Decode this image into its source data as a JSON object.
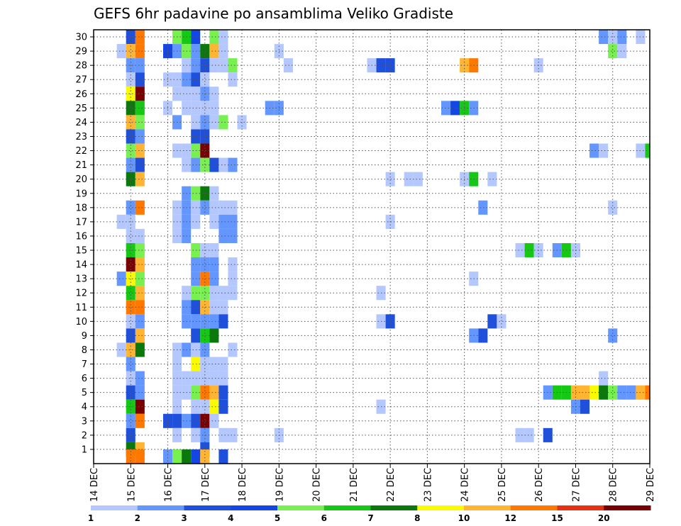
{
  "chart_data": {
    "type": "heatmap",
    "title": "GEFS 6hr padavine po ansamblima Veliko Gradiste",
    "xlabel": "",
    "ylabel": "",
    "x_ticks": [
      "14 DEC",
      "15 DEC",
      "16 DEC",
      "17 DEC",
      "18 DEC",
      "19 DEC",
      "20 DEC",
      "21 DEC",
      "22 DEC",
      "23 DEC",
      "24 DEC",
      "25 DEC",
      "26 DEC",
      "27 DEC",
      "28 DEC",
      "29 DEC"
    ],
    "y_ticks": [
      1,
      2,
      3,
      4,
      5,
      6,
      7,
      8,
      9,
      10,
      11,
      12,
      13,
      14,
      15,
      16,
      17,
      18,
      19,
      20,
      21,
      22,
      23,
      24,
      25,
      26,
      27,
      28,
      29,
      30
    ],
    "time_range_days": [
      0,
      15
    ],
    "member_range": [
      0,
      30.5
    ],
    "grid": "dotted",
    "colorbar": {
      "labels": [
        "1",
        "2",
        "3",
        "4",
        "5",
        "6",
        "7",
        "8",
        "10",
        "12",
        "15",
        "20"
      ],
      "colors": [
        "#b4c8ff",
        "#6496ff",
        "#1e50dc",
        "#1446e6",
        "#78f050",
        "#14c814",
        "#0a780a",
        "#fafa00",
        "#ffb432",
        "#ff7800",
        "#e63214",
        "#780000"
      ]
    },
    "cell_width_hours": 6,
    "cells": [
      [
        1.0,
        30,
        3
      ],
      [
        1.25,
        30,
        12
      ],
      [
        2.25,
        30,
        5
      ],
      [
        2.5,
        30,
        6
      ],
      [
        2.75,
        30,
        4
      ],
      [
        3.25,
        30,
        5
      ],
      [
        3.5,
        30,
        1
      ],
      [
        13.75,
        30,
        2
      ],
      [
        14.0,
        30,
        1
      ],
      [
        14.25,
        30,
        2
      ],
      [
        14.75,
        30,
        1
      ],
      [
        0.75,
        29,
        1
      ],
      [
        1.0,
        29,
        10
      ],
      [
        1.25,
        29,
        12
      ],
      [
        2.0,
        29,
        4
      ],
      [
        2.25,
        29,
        2
      ],
      [
        2.5,
        29,
        5
      ],
      [
        2.75,
        29,
        2
      ],
      [
        3.0,
        29,
        7
      ],
      [
        3.25,
        29,
        10
      ],
      [
        3.5,
        29,
        1
      ],
      [
        5.0,
        29,
        1
      ],
      [
        14.0,
        29,
        5
      ],
      [
        14.25,
        29,
        1
      ],
      [
        1.0,
        28,
        2
      ],
      [
        1.25,
        28,
        2
      ],
      [
        2.5,
        28,
        1
      ],
      [
        2.75,
        28,
        2
      ],
      [
        3.0,
        28,
        3
      ],
      [
        3.25,
        28,
        1
      ],
      [
        3.5,
        28,
        1
      ],
      [
        3.75,
        28,
        5
      ],
      [
        5.25,
        28,
        1
      ],
      [
        7.5,
        28,
        1
      ],
      [
        7.75,
        28,
        3
      ],
      [
        8.0,
        28,
        3
      ],
      [
        10.0,
        28,
        10
      ],
      [
        10.25,
        28,
        12
      ],
      [
        12.0,
        28,
        1
      ],
      [
        1.0,
        27,
        1
      ],
      [
        1.25,
        27,
        3
      ],
      [
        2.0,
        27,
        1
      ],
      [
        2.25,
        27,
        1
      ],
      [
        2.5,
        27,
        2
      ],
      [
        2.75,
        27,
        3
      ],
      [
        3.0,
        27,
        1
      ],
      [
        3.75,
        27,
        1
      ],
      [
        1.0,
        26,
        8
      ],
      [
        1.25,
        26,
        20
      ],
      [
        2.25,
        26,
        1
      ],
      [
        2.5,
        26,
        1
      ],
      [
        2.75,
        26,
        1
      ],
      [
        3.0,
        26,
        2
      ],
      [
        3.25,
        26,
        1
      ],
      [
        1.0,
        25,
        7
      ],
      [
        1.25,
        25,
        6
      ],
      [
        2.0,
        25,
        1
      ],
      [
        2.5,
        25,
        1
      ],
      [
        2.75,
        25,
        1
      ],
      [
        3.0,
        25,
        1
      ],
      [
        3.25,
        25,
        1
      ],
      [
        4.75,
        25,
        2
      ],
      [
        5.0,
        25,
        2
      ],
      [
        9.5,
        25,
        2
      ],
      [
        9.75,
        25,
        4
      ],
      [
        10.0,
        25,
        6
      ],
      [
        10.25,
        25,
        2
      ],
      [
        1.0,
        24,
        10
      ],
      [
        1.25,
        24,
        5
      ],
      [
        2.25,
        24,
        2
      ],
      [
        2.75,
        24,
        1
      ],
      [
        3.0,
        24,
        2
      ],
      [
        3.25,
        24,
        1
      ],
      [
        3.5,
        24,
        5
      ],
      [
        4.0,
        24,
        1
      ],
      [
        1.0,
        23,
        3
      ],
      [
        1.25,
        23,
        2
      ],
      [
        2.75,
        23,
        3
      ],
      [
        3.0,
        23,
        3
      ],
      [
        1.0,
        22,
        5
      ],
      [
        1.25,
        22,
        10
      ],
      [
        2.25,
        22,
        1
      ],
      [
        2.5,
        22,
        1
      ],
      [
        2.75,
        22,
        5
      ],
      [
        3.0,
        22,
        20
      ],
      [
        13.5,
        22,
        2
      ],
      [
        13.75,
        22,
        1
      ],
      [
        14.75,
        22,
        1
      ],
      [
        15.0,
        22,
        6
      ],
      [
        1.0,
        21,
        2
      ],
      [
        1.25,
        21,
        3
      ],
      [
        2.5,
        21,
        1
      ],
      [
        2.75,
        21,
        2
      ],
      [
        3.0,
        21,
        5
      ],
      [
        3.25,
        21,
        3
      ],
      [
        3.5,
        21,
        1
      ],
      [
        3.75,
        21,
        2
      ],
      [
        1.0,
        20,
        7
      ],
      [
        1.25,
        20,
        10
      ],
      [
        8.0,
        20,
        1
      ],
      [
        8.5,
        20,
        1
      ],
      [
        8.75,
        20,
        1
      ],
      [
        10.0,
        20,
        1
      ],
      [
        10.25,
        20,
        6
      ],
      [
        10.75,
        20,
        1
      ],
      [
        2.5,
        19,
        2
      ],
      [
        2.75,
        19,
        5
      ],
      [
        3.0,
        19,
        7
      ],
      [
        3.25,
        19,
        1
      ],
      [
        1.0,
        18,
        2
      ],
      [
        1.25,
        18,
        12
      ],
      [
        2.25,
        18,
        1
      ],
      [
        2.5,
        18,
        2
      ],
      [
        2.75,
        18,
        1
      ],
      [
        3.0,
        18,
        2
      ],
      [
        3.25,
        18,
        1
      ],
      [
        3.5,
        18,
        1
      ],
      [
        3.75,
        18,
        1
      ],
      [
        10.5,
        18,
        2
      ],
      [
        14.0,
        18,
        1
      ],
      [
        0.75,
        17,
        1
      ],
      [
        1.0,
        17,
        1
      ],
      [
        2.25,
        17,
        1
      ],
      [
        2.5,
        17,
        2
      ],
      [
        2.75,
        17,
        1
      ],
      [
        3.25,
        17,
        1
      ],
      [
        3.5,
        17,
        2
      ],
      [
        3.75,
        17,
        2
      ],
      [
        8.0,
        17,
        1
      ],
      [
        1.0,
        16,
        1
      ],
      [
        1.25,
        16,
        1
      ],
      [
        2.25,
        16,
        1
      ],
      [
        2.5,
        16,
        2
      ],
      [
        3.5,
        16,
        2
      ],
      [
        3.75,
        16,
        2
      ],
      [
        1.0,
        15,
        6
      ],
      [
        1.25,
        15,
        5
      ],
      [
        2.75,
        15,
        5
      ],
      [
        3.0,
        15,
        1
      ],
      [
        3.25,
        15,
        1
      ],
      [
        11.5,
        15,
        1
      ],
      [
        11.75,
        15,
        6
      ],
      [
        12.0,
        15,
        1
      ],
      [
        12.5,
        15,
        2
      ],
      [
        12.75,
        15,
        6
      ],
      [
        13.0,
        15,
        1
      ],
      [
        1.0,
        14,
        20
      ],
      [
        1.25,
        14,
        10
      ],
      [
        2.75,
        14,
        2
      ],
      [
        3.0,
        14,
        2
      ],
      [
        3.25,
        14,
        2
      ],
      [
        3.75,
        14,
        1
      ],
      [
        0.75,
        13,
        2
      ],
      [
        1.0,
        13,
        8
      ],
      [
        1.25,
        13,
        5
      ],
      [
        2.75,
        13,
        2
      ],
      [
        3.0,
        13,
        12
      ],
      [
        3.25,
        13,
        2
      ],
      [
        3.75,
        13,
        1
      ],
      [
        10.25,
        13,
        1
      ],
      [
        1.0,
        12,
        6
      ],
      [
        1.25,
        12,
        10
      ],
      [
        2.5,
        12,
        1
      ],
      [
        2.75,
        12,
        5
      ],
      [
        3.0,
        12,
        5
      ],
      [
        3.25,
        12,
        1
      ],
      [
        3.5,
        12,
        1
      ],
      [
        3.75,
        12,
        1
      ],
      [
        7.75,
        12,
        1
      ],
      [
        1.0,
        11,
        12
      ],
      [
        1.25,
        11,
        12
      ],
      [
        2.5,
        11,
        2
      ],
      [
        2.75,
        11,
        3
      ],
      [
        3.0,
        11,
        10
      ],
      [
        3.25,
        11,
        1
      ],
      [
        3.5,
        11,
        1
      ],
      [
        1.0,
        10,
        1
      ],
      [
        1.25,
        10,
        2
      ],
      [
        2.5,
        10,
        2
      ],
      [
        2.75,
        10,
        2
      ],
      [
        3.0,
        10,
        2
      ],
      [
        3.25,
        10,
        2
      ],
      [
        3.5,
        10,
        3
      ],
      [
        7.75,
        10,
        1
      ],
      [
        8.0,
        10,
        3
      ],
      [
        10.75,
        10,
        3
      ],
      [
        11.0,
        10,
        1
      ],
      [
        1.0,
        9,
        3
      ],
      [
        1.25,
        9,
        10
      ],
      [
        2.75,
        9,
        3
      ],
      [
        3.0,
        9,
        6
      ],
      [
        3.25,
        9,
        7
      ],
      [
        10.25,
        9,
        2
      ],
      [
        10.5,
        9,
        3
      ],
      [
        14.0,
        9,
        2
      ],
      [
        0.75,
        8,
        1
      ],
      [
        1.0,
        8,
        10
      ],
      [
        1.25,
        8,
        7
      ],
      [
        2.25,
        8,
        1
      ],
      [
        2.5,
        8,
        2
      ],
      [
        2.75,
        8,
        1
      ],
      [
        3.0,
        8,
        2
      ],
      [
        3.75,
        8,
        1
      ],
      [
        1.0,
        7,
        2
      ],
      [
        2.25,
        7,
        1
      ],
      [
        2.75,
        7,
        8
      ],
      [
        3.0,
        7,
        1
      ],
      [
        3.25,
        7,
        1
      ],
      [
        3.5,
        7,
        1
      ],
      [
        1.0,
        6,
        1
      ],
      [
        1.25,
        6,
        2
      ],
      [
        2.25,
        6,
        1
      ],
      [
        2.5,
        6,
        1
      ],
      [
        2.75,
        6,
        1
      ],
      [
        3.0,
        6,
        1
      ],
      [
        3.25,
        6,
        1
      ],
      [
        3.5,
        6,
        1
      ],
      [
        13.75,
        6,
        1
      ],
      [
        1.0,
        5,
        3
      ],
      [
        1.25,
        5,
        2
      ],
      [
        2.25,
        5,
        1
      ],
      [
        2.5,
        5,
        1
      ],
      [
        2.75,
        5,
        5
      ],
      [
        3.0,
        5,
        12
      ],
      [
        3.25,
        5,
        10
      ],
      [
        3.5,
        5,
        3
      ],
      [
        12.25,
        5,
        2
      ],
      [
        12.5,
        5,
        6
      ],
      [
        12.75,
        5,
        6
      ],
      [
        13.0,
        5,
        10
      ],
      [
        13.25,
        5,
        10
      ],
      [
        13.5,
        5,
        8
      ],
      [
        13.75,
        5,
        7
      ],
      [
        14.0,
        5,
        5
      ],
      [
        14.25,
        5,
        2
      ],
      [
        14.5,
        5,
        2
      ],
      [
        14.75,
        5,
        10
      ],
      [
        15.0,
        5,
        12
      ],
      [
        1.0,
        4,
        6
      ],
      [
        1.25,
        4,
        20
      ],
      [
        2.25,
        4,
        1
      ],
      [
        2.75,
        4,
        1
      ],
      [
        3.0,
        4,
        1
      ],
      [
        3.25,
        4,
        8
      ],
      [
        3.5,
        4,
        3
      ],
      [
        7.75,
        4,
        1
      ],
      [
        13.0,
        4,
        2
      ],
      [
        13.25,
        4,
        3
      ],
      [
        1.0,
        3,
        2
      ],
      [
        1.25,
        3,
        12
      ],
      [
        2.0,
        3,
        3
      ],
      [
        2.25,
        3,
        3
      ],
      [
        2.5,
        3,
        2
      ],
      [
        2.75,
        3,
        3
      ],
      [
        3.0,
        3,
        20
      ],
      [
        3.25,
        3,
        1
      ],
      [
        1.0,
        2,
        3
      ],
      [
        2.25,
        2,
        1
      ],
      [
        2.75,
        2,
        1
      ],
      [
        3.0,
        2,
        2
      ],
      [
        3.5,
        2,
        1
      ],
      [
        3.75,
        2,
        1
      ],
      [
        5.0,
        2,
        1
      ],
      [
        11.5,
        2,
        1
      ],
      [
        11.75,
        2,
        1
      ],
      [
        12.25,
        2,
        3
      ],
      [
        1.0,
        1,
        7
      ],
      [
        1.25,
        1,
        10
      ],
      [
        3.0,
        1,
        3
      ],
      [
        1.0,
        0.5,
        12
      ],
      [
        1.25,
        0.5,
        12
      ],
      [
        2.0,
        0.5,
        2
      ],
      [
        2.25,
        0.5,
        5
      ],
      [
        2.5,
        0.5,
        7
      ],
      [
        2.75,
        0.5,
        4
      ],
      [
        3.0,
        0.5,
        10
      ],
      [
        3.5,
        0.5,
        3
      ]
    ]
  }
}
